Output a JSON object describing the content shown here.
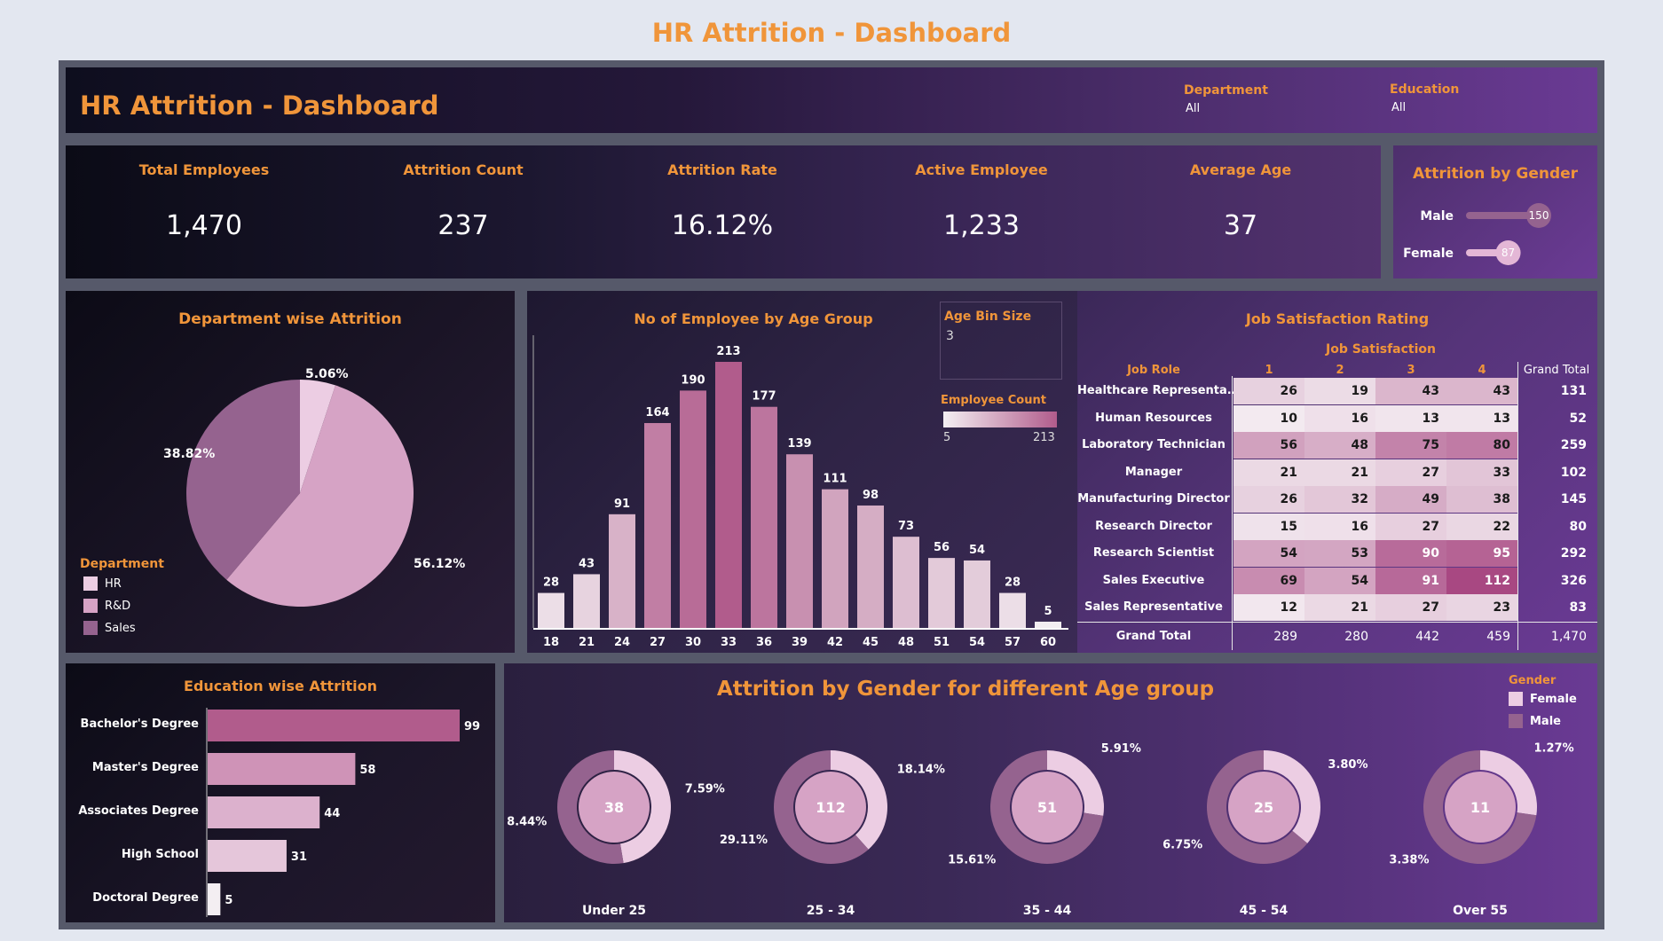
{
  "page_title": "HR Attrition - Dashboard",
  "header": {
    "title": "HR Attrition - Dashboard",
    "filters": [
      {
        "label": "Department",
        "value": "All"
      },
      {
        "label": "Education",
        "value": "All"
      }
    ]
  },
  "kpis": [
    {
      "label": "Total Employees",
      "value": "1,470"
    },
    {
      "label": "Attrition Count",
      "value": "237"
    },
    {
      "label": "Attrition Rate",
      "value": "16.12%"
    },
    {
      "label": "Active Employee",
      "value": "1,233"
    },
    {
      "label": "Average Age",
      "value": "37"
    }
  ],
  "colors": {
    "accent": "#f0953a",
    "pink_light": "#eccde3",
    "pink_mid": "#d6a3c5",
    "pink_dark": "#95638f",
    "bar_dark": "#b15c8c"
  },
  "chart_data": [
    {
      "id": "attrition_by_gender",
      "type": "bar",
      "title": "Attrition by Gender",
      "categories": [
        "Male",
        "Female"
      ],
      "values": [
        150,
        87
      ],
      "labels": [
        "150",
        "87"
      ]
    },
    {
      "id": "department_attrition",
      "type": "pie",
      "title": "Department wise Attrition",
      "legend_title": "Department",
      "categories": [
        "HR",
        "R&D",
        "Sales"
      ],
      "values": [
        5.06,
        56.12,
        38.82
      ],
      "labels": [
        "5.06%",
        "56.12%",
        "38.82%"
      ],
      "colors": [
        "#eccde3",
        "#d6a3c5",
        "#95638f"
      ]
    },
    {
      "id": "age_group",
      "type": "bar",
      "title": "No of Employee by Age Group",
      "categories": [
        "18",
        "21",
        "24",
        "27",
        "30",
        "33",
        "36",
        "39",
        "42",
        "45",
        "48",
        "51",
        "54",
        "57",
        "60"
      ],
      "values": [
        28,
        43,
        91,
        164,
        190,
        213,
        177,
        139,
        111,
        98,
        73,
        56,
        54,
        28,
        5
      ],
      "labels": [
        "28",
        "43",
        "91",
        "164",
        "190",
        "213",
        "177",
        "139",
        "111",
        "98",
        "73",
        "56",
        "54",
        "28",
        "5"
      ],
      "ylim": [
        0,
        213
      ],
      "bin_size_label": "Age Bin Size",
      "bin_size_value": "3",
      "color_legend_label": "Employee Count",
      "color_min_label": "5",
      "color_max_label": "213"
    },
    {
      "id": "job_satisfaction",
      "type": "table",
      "title": "Job Satisfaction Rating",
      "column_group": "Job Satisfaction",
      "row_header": "Job Role",
      "columns": [
        "1",
        "2",
        "3",
        "4"
      ],
      "total_header": "Grand Total",
      "rows": [
        {
          "role": "Healthcare Representa..",
          "values": [
            "26",
            "19",
            "43",
            "43"
          ],
          "total": "131"
        },
        {
          "role": "Human Resources",
          "values": [
            "10",
            "16",
            "13",
            "13"
          ],
          "total": "52"
        },
        {
          "role": "Laboratory Technician",
          "values": [
            "56",
            "48",
            "75",
            "80"
          ],
          "total": "259"
        },
        {
          "role": "Manager",
          "values": [
            "21",
            "21",
            "27",
            "33"
          ],
          "total": "102"
        },
        {
          "role": "Manufacturing Director",
          "values": [
            "26",
            "32",
            "49",
            "38"
          ],
          "total": "145"
        },
        {
          "role": "Research Director",
          "values": [
            "15",
            "16",
            "27",
            "22"
          ],
          "total": "80"
        },
        {
          "role": "Research Scientist",
          "values": [
            "54",
            "53",
            "90",
            "95"
          ],
          "total": "292"
        },
        {
          "role": "Sales Executive",
          "values": [
            "69",
            "54",
            "91",
            "112"
          ],
          "total": "326"
        },
        {
          "role": "Sales Representative",
          "values": [
            "12",
            "21",
            "27",
            "23"
          ],
          "total": "83"
        }
      ],
      "grand_total": {
        "label": "Grand Total",
        "values": [
          "289",
          "280",
          "442",
          "459"
        ],
        "total": "1,470"
      }
    },
    {
      "id": "education_attrition",
      "type": "bar",
      "title": "Education wise Attrition",
      "categories": [
        "Bachelor's Degree",
        "Master's Degree",
        "Associates Degree",
        "High School",
        "Doctoral Degree"
      ],
      "values": [
        99,
        58,
        44,
        31,
        5
      ],
      "labels": [
        "99",
        "58",
        "44",
        "31",
        "5"
      ]
    },
    {
      "id": "gender_age_group",
      "type": "pie",
      "title": "Attrition by Gender for different Age group",
      "legend_title": "Gender",
      "legend": [
        "Female",
        "Male"
      ],
      "groups": [
        {
          "name": "Under 25",
          "total": "38",
          "female_pct": 7.59,
          "male_pct": 8.44,
          "female_label": "7.59%",
          "male_label": "8.44%"
        },
        {
          "name": "25 - 34",
          "total": "112",
          "female_pct": 18.14,
          "male_pct": 29.11,
          "female_label": "18.14%",
          "male_label": "29.11%"
        },
        {
          "name": "35 - 44",
          "total": "51",
          "female_pct": 5.91,
          "male_pct": 15.61,
          "female_label": "5.91%",
          "male_label": "15.61%"
        },
        {
          "name": "45 - 54",
          "total": "25",
          "female_pct": 3.8,
          "male_pct": 6.75,
          "female_label": "3.80%",
          "male_label": "6.75%"
        },
        {
          "name": "Over 55",
          "total": "11",
          "female_pct": 1.27,
          "male_pct": 3.38,
          "female_label": "1.27%",
          "male_label": "3.38%"
        }
      ]
    }
  ]
}
